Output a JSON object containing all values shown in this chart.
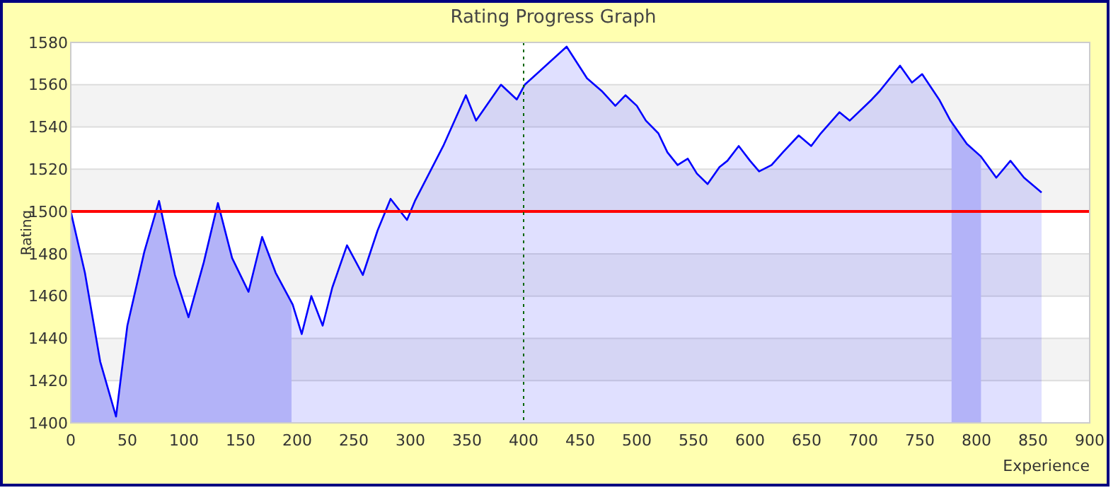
{
  "chart_data": {
    "type": "area",
    "title": "Rating Progress Graph",
    "xlabel": "Experience",
    "ylabel": "Rating",
    "x": [
      0,
      12.5,
      26,
      40,
      50,
      65,
      78,
      92,
      104,
      117.5,
      130,
      142.5,
      157,
      169,
      181,
      196,
      204,
      212.5,
      222.5,
      231,
      244,
      258,
      271,
      282.5,
      297,
      304,
      329,
      349,
      358,
      380,
      394,
      401,
      438,
      456,
      469,
      481,
      490,
      500,
      508,
      519,
      527,
      536,
      545,
      553,
      562.5,
      573,
      580,
      590,
      600,
      608,
      619,
      629,
      643,
      654,
      662.5,
      679,
      688,
      707.5,
      714.5,
      732.5,
      743,
      752,
      767,
      777,
      791.5,
      804,
      817.5,
      830,
      842,
      857.5
    ],
    "series": [
      {
        "color": "#0000ff",
        "values": [
          1500,
          1471,
          1429,
          1403,
          1446,
          1481,
          1505,
          1470,
          1450,
          1476,
          1504,
          1478,
          1462,
          1488,
          1471,
          1456,
          1442,
          1460,
          1446,
          1464,
          1484,
          1470,
          1491,
          1506,
          1496,
          1505,
          1531,
          1555,
          1543,
          1560,
          1553,
          1560,
          1578,
          1563,
          1557,
          1550,
          1555,
          1550,
          1543,
          1537,
          1528,
          1522,
          1525,
          1518,
          1513,
          1521,
          1524,
          1531,
          1524,
          1519,
          1522,
          1528,
          1536,
          1531,
          1537,
          1547,
          1543,
          1553,
          1557,
          1569,
          1561,
          1565,
          1553,
          1543,
          1532,
          1526,
          1516,
          1524,
          1516,
          1509
        ]
      }
    ],
    "xlim": [
      0,
      900
    ],
    "xticks": [
      0,
      50,
      100,
      150,
      200,
      250,
      300,
      350,
      400,
      450,
      500,
      550,
      600,
      650,
      700,
      750,
      800,
      850,
      900
    ],
    "ylim": [
      1400,
      1580
    ],
    "yticks": [
      1400,
      1420,
      1440,
      1460,
      1480,
      1500,
      1520,
      1540,
      1560,
      1580
    ],
    "grid": "y",
    "ref_lines": [
      {
        "axis": "y",
        "value": 1500,
        "color": "#ff0000",
        "line_style": "solid"
      },
      {
        "axis": "x",
        "value": 400,
        "color": "#006600",
        "line_style": "dotted"
      }
    ],
    "bands": [
      {
        "axis": "x",
        "from": 0,
        "to": 195,
        "color": "#ccccf8"
      },
      {
        "axis": "x",
        "from": 778,
        "to": 804,
        "color": "#ccccf8"
      }
    ]
  }
}
